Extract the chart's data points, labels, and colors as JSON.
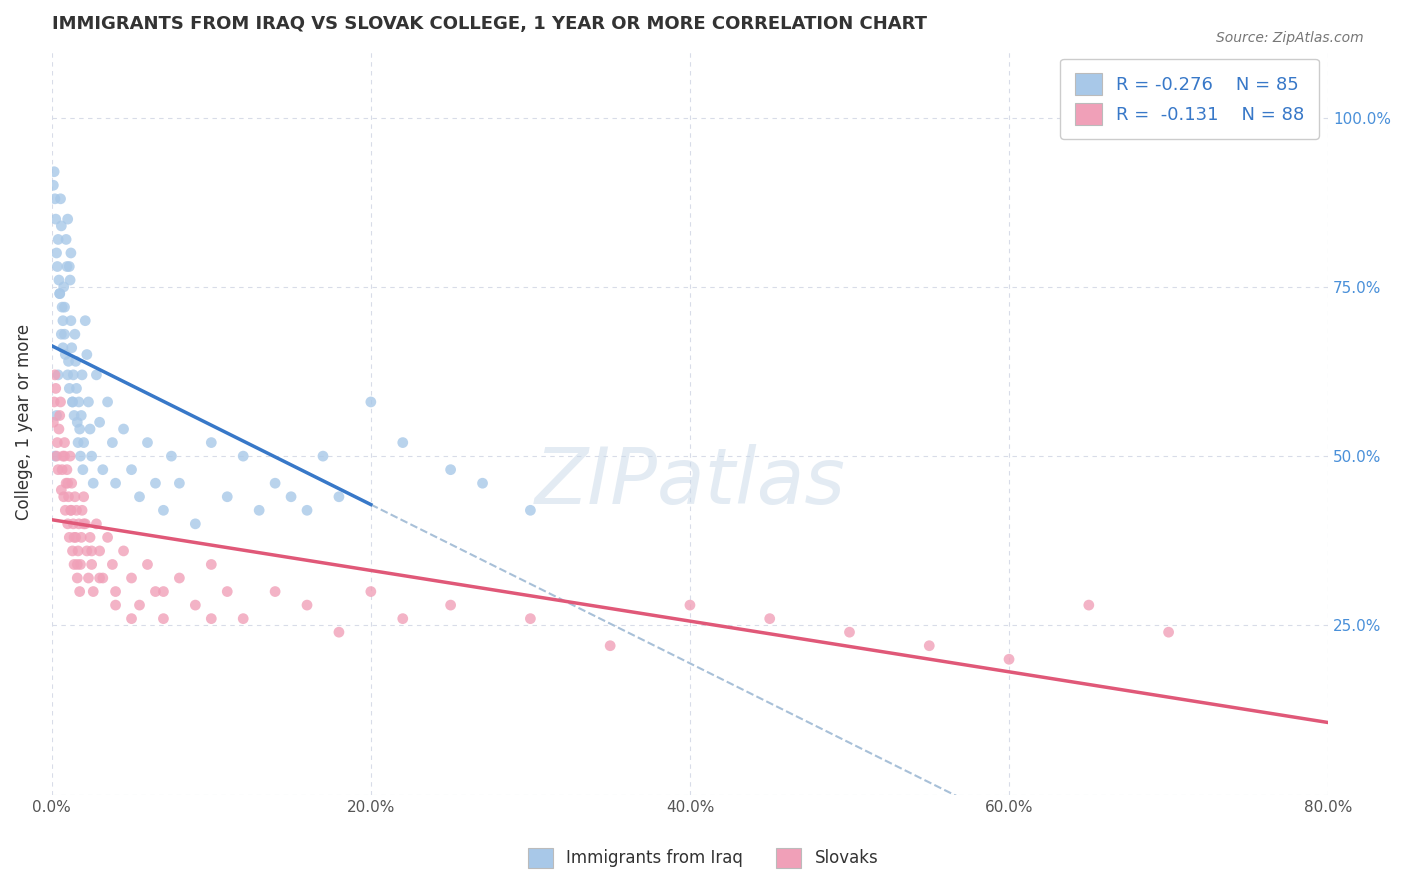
{
  "title": "IMMIGRANTS FROM IRAQ VS SLOVAK COLLEGE, 1 YEAR OR MORE CORRELATION CHART",
  "source_text": "Source: ZipAtlas.com",
  "ylabel": "College, 1 year or more",
  "x_tick_labels": [
    "0.0%",
    "20.0%",
    "40.0%",
    "60.0%",
    "80.0%"
  ],
  "x_tick_vals": [
    0,
    20,
    40,
    60,
    80
  ],
  "y_tick_labels_right": [
    "25.0%",
    "50.0%",
    "75.0%",
    "100.0%"
  ],
  "y_tick_vals": [
    0,
    25,
    50,
    75,
    100
  ],
  "xlim": [
    0,
    80
  ],
  "ylim": [
    0,
    110
  ],
  "legend_labels": [
    "Immigrants from Iraq",
    "Slovaks"
  ],
  "legend_R": [
    "R = -0.276",
    "R =  -0.131"
  ],
  "legend_N": [
    "N = 85",
    "N = 88"
  ],
  "blue_color": "#a8c8e8",
  "pink_color": "#f0a0b8",
  "blue_line_color": "#3878c8",
  "pink_line_color": "#e05878",
  "dashed_line_color": "#a8c0d8",
  "watermark": "ZIPatlas",
  "background_color": "#ffffff",
  "grid_color": "#d8dce8",
  "iraq_x": [
    0.1,
    0.15,
    0.2,
    0.25,
    0.3,
    0.35,
    0.4,
    0.45,
    0.5,
    0.55,
    0.6,
    0.65,
    0.7,
    0.75,
    0.8,
    0.85,
    0.9,
    0.95,
    1.0,
    1.05,
    1.1,
    1.15,
    1.2,
    1.25,
    1.3,
    1.35,
    1.4,
    1.45,
    1.5,
    1.55,
    1.6,
    1.65,
    1.7,
    1.75,
    1.8,
    1.85,
    1.9,
    1.95,
    2.0,
    2.1,
    2.2,
    2.3,
    2.4,
    2.5,
    2.6,
    2.8,
    3.0,
    3.2,
    3.5,
    3.8,
    4.0,
    4.5,
    5.0,
    5.5,
    6.0,
    6.5,
    7.0,
    7.5,
    8.0,
    9.0,
    10.0,
    11.0,
    12.0,
    13.0,
    14.0,
    15.0,
    16.0,
    17.0,
    18.0,
    20.0,
    22.0,
    25.0,
    27.0,
    30.0,
    1.0,
    1.2,
    0.8,
    0.6,
    0.4,
    0.3,
    0.2,
    0.5,
    0.7,
    1.1,
    1.3
  ],
  "iraq_y": [
    90,
    92,
    88,
    85,
    80,
    78,
    82,
    76,
    74,
    88,
    84,
    72,
    70,
    75,
    68,
    65,
    82,
    78,
    62,
    64,
    60,
    76,
    70,
    66,
    58,
    62,
    56,
    68,
    64,
    60,
    55,
    52,
    58,
    54,
    50,
    56,
    62,
    48,
    52,
    70,
    65,
    58,
    54,
    50,
    46,
    62,
    55,
    48,
    58,
    52,
    46,
    54,
    48,
    44,
    52,
    46,
    42,
    50,
    46,
    40,
    52,
    44,
    50,
    42,
    46,
    44,
    42,
    50,
    44,
    58,
    52,
    48,
    46,
    42,
    85,
    80,
    72,
    68,
    62,
    56,
    50,
    74,
    66,
    78,
    58
  ],
  "slovak_x": [
    0.1,
    0.15,
    0.2,
    0.25,
    0.3,
    0.35,
    0.4,
    0.45,
    0.5,
    0.55,
    0.6,
    0.65,
    0.7,
    0.75,
    0.8,
    0.85,
    0.9,
    0.95,
    1.0,
    1.05,
    1.1,
    1.15,
    1.2,
    1.25,
    1.3,
    1.35,
    1.4,
    1.45,
    1.5,
    1.55,
    1.6,
    1.65,
    1.7,
    1.75,
    1.8,
    1.85,
    1.9,
    2.0,
    2.1,
    2.2,
    2.3,
    2.4,
    2.5,
    2.6,
    2.8,
    3.0,
    3.2,
    3.5,
    3.8,
    4.0,
    4.5,
    5.0,
    5.5,
    6.0,
    6.5,
    7.0,
    8.0,
    9.0,
    10.0,
    11.0,
    12.0,
    14.0,
    16.0,
    18.0,
    20.0,
    22.0,
    25.0,
    30.0,
    35.0,
    40.0,
    45.0,
    50.0,
    55.0,
    60.0,
    65.0,
    70.0,
    0.8,
    1.0,
    1.2,
    1.4,
    1.6,
    2.0,
    2.5,
    3.0,
    4.0,
    5.0,
    7.0,
    10.0
  ],
  "slovak_y": [
    55,
    58,
    62,
    60,
    50,
    52,
    48,
    54,
    56,
    58,
    45,
    48,
    50,
    44,
    52,
    42,
    46,
    48,
    40,
    44,
    38,
    50,
    42,
    46,
    36,
    40,
    34,
    44,
    38,
    42,
    32,
    36,
    40,
    30,
    34,
    38,
    42,
    44,
    40,
    36,
    32,
    38,
    34,
    30,
    40,
    36,
    32,
    38,
    34,
    30,
    36,
    32,
    28,
    34,
    30,
    26,
    32,
    28,
    34,
    30,
    26,
    30,
    28,
    24,
    30,
    26,
    28,
    26,
    22,
    28,
    26,
    24,
    22,
    20,
    28,
    24,
    50,
    46,
    42,
    38,
    34,
    40,
    36,
    32,
    28,
    26,
    30,
    26
  ]
}
